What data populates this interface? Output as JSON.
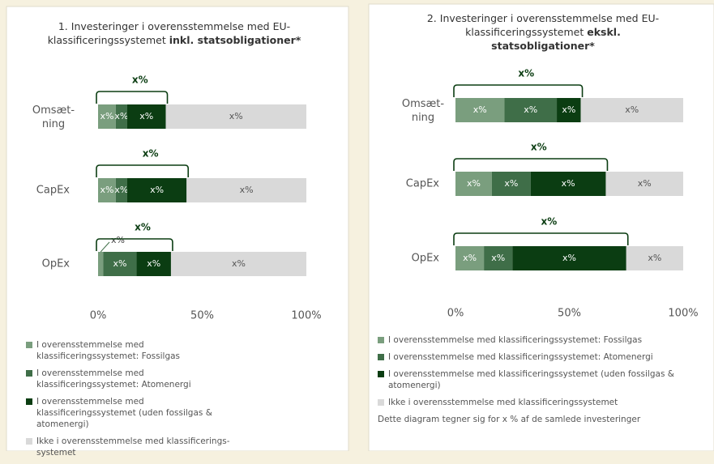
{
  "chart_data": [
    {
      "type": "bar",
      "orientation": "horizontal",
      "stacked": true,
      "title": "1. Investeringer i overensstemmelse med EU-klassificeringssystemet",
      "title_bold": "inkl. statsobligationer*",
      "categories": [
        "Omsæt-\nning",
        "CapEx",
        "OpEx"
      ],
      "series": [
        {
          "name": "I overensstemmelse med klassificeringssystemet: Fossilgas",
          "color": "#7a9e7e",
          "values": [
            8.5,
            8.5,
            2.5
          ],
          "value_labels": [
            "x%",
            "x%",
            "x%"
          ]
        },
        {
          "name": "I overensstemmelse med klassificeringssystemet: Atomenergi",
          "color": "#3f6e48",
          "values": [
            5.5,
            5.5,
            16
          ],
          "value_labels": [
            "x%",
            "x%",
            "x%"
          ]
        },
        {
          "name": "I overensstemmelse med klassificeringssystemet (uden fossilgas & atomenergi)",
          "color": "#0b3d12",
          "values": [
            18.5,
            28.5,
            16.5
          ],
          "value_labels": [
            "x%",
            "x%",
            "x%"
          ]
        },
        {
          "name": "Ikke i overensstemmelse med klassificerings-systemet",
          "color": "#d9d9d9",
          "values": [
            67.5,
            57.5,
            65
          ],
          "value_labels": [
            "x%",
            "x%",
            "x%"
          ]
        }
      ],
      "annotations": [
        "x%",
        "x%",
        "x%"
      ],
      "xlim": [
        0,
        100
      ],
      "xticks": [
        {
          "value": 0,
          "label": "0%"
        },
        {
          "value": 50,
          "label": "50%"
        },
        {
          "value": 100,
          "label": "100%"
        }
      ]
    },
    {
      "type": "bar",
      "orientation": "horizontal",
      "stacked": true,
      "title": "2. Investeringer i overensstemmelse med EU-klassificeringssystemet",
      "title_bold": "ekskl. statsobligationer*",
      "categories": [
        "Omsæt-\nning",
        "CapEx",
        "OpEx"
      ],
      "series": [
        {
          "name": "I overensstemmelse med klassificeringssystemet: Fossilgas",
          "color": "#7a9e7e",
          "values": [
            21.5,
            16,
            12.5
          ],
          "value_labels": [
            "x%",
            "x%",
            "x%"
          ]
        },
        {
          "name": "I overensstemmelse med klassificeringssystemet: Atomenergi",
          "color": "#3f6e48",
          "values": [
            23,
            17,
            12.5
          ],
          "value_labels": [
            "x%",
            "x%",
            "x%"
          ]
        },
        {
          "name": "I overensstemmelse med klassificeringssystemet (uden fossilgas & atomenergi)",
          "color": "#0b3d12",
          "values": [
            10.5,
            33,
            50
          ],
          "value_labels": [
            "x%",
            "x%",
            "x%"
          ]
        },
        {
          "name": "Ikke i overensstemmelse med klassificeringssystemet",
          "color": "#d9d9d9",
          "values": [
            45,
            34,
            25
          ],
          "value_labels": [
            "x%",
            "x%",
            "x%"
          ]
        }
      ],
      "annotations": [
        "x%",
        "x%",
        "x%"
      ],
      "footnote": "Dette diagram tegner sig for x % af de samlede investeringer",
      "xlim": [
        0,
        100
      ],
      "xticks": [
        {
          "value": 0,
          "label": "0%"
        },
        {
          "value": 50,
          "label": "50%"
        },
        {
          "value": 100,
          "label": "100%"
        }
      ]
    }
  ]
}
